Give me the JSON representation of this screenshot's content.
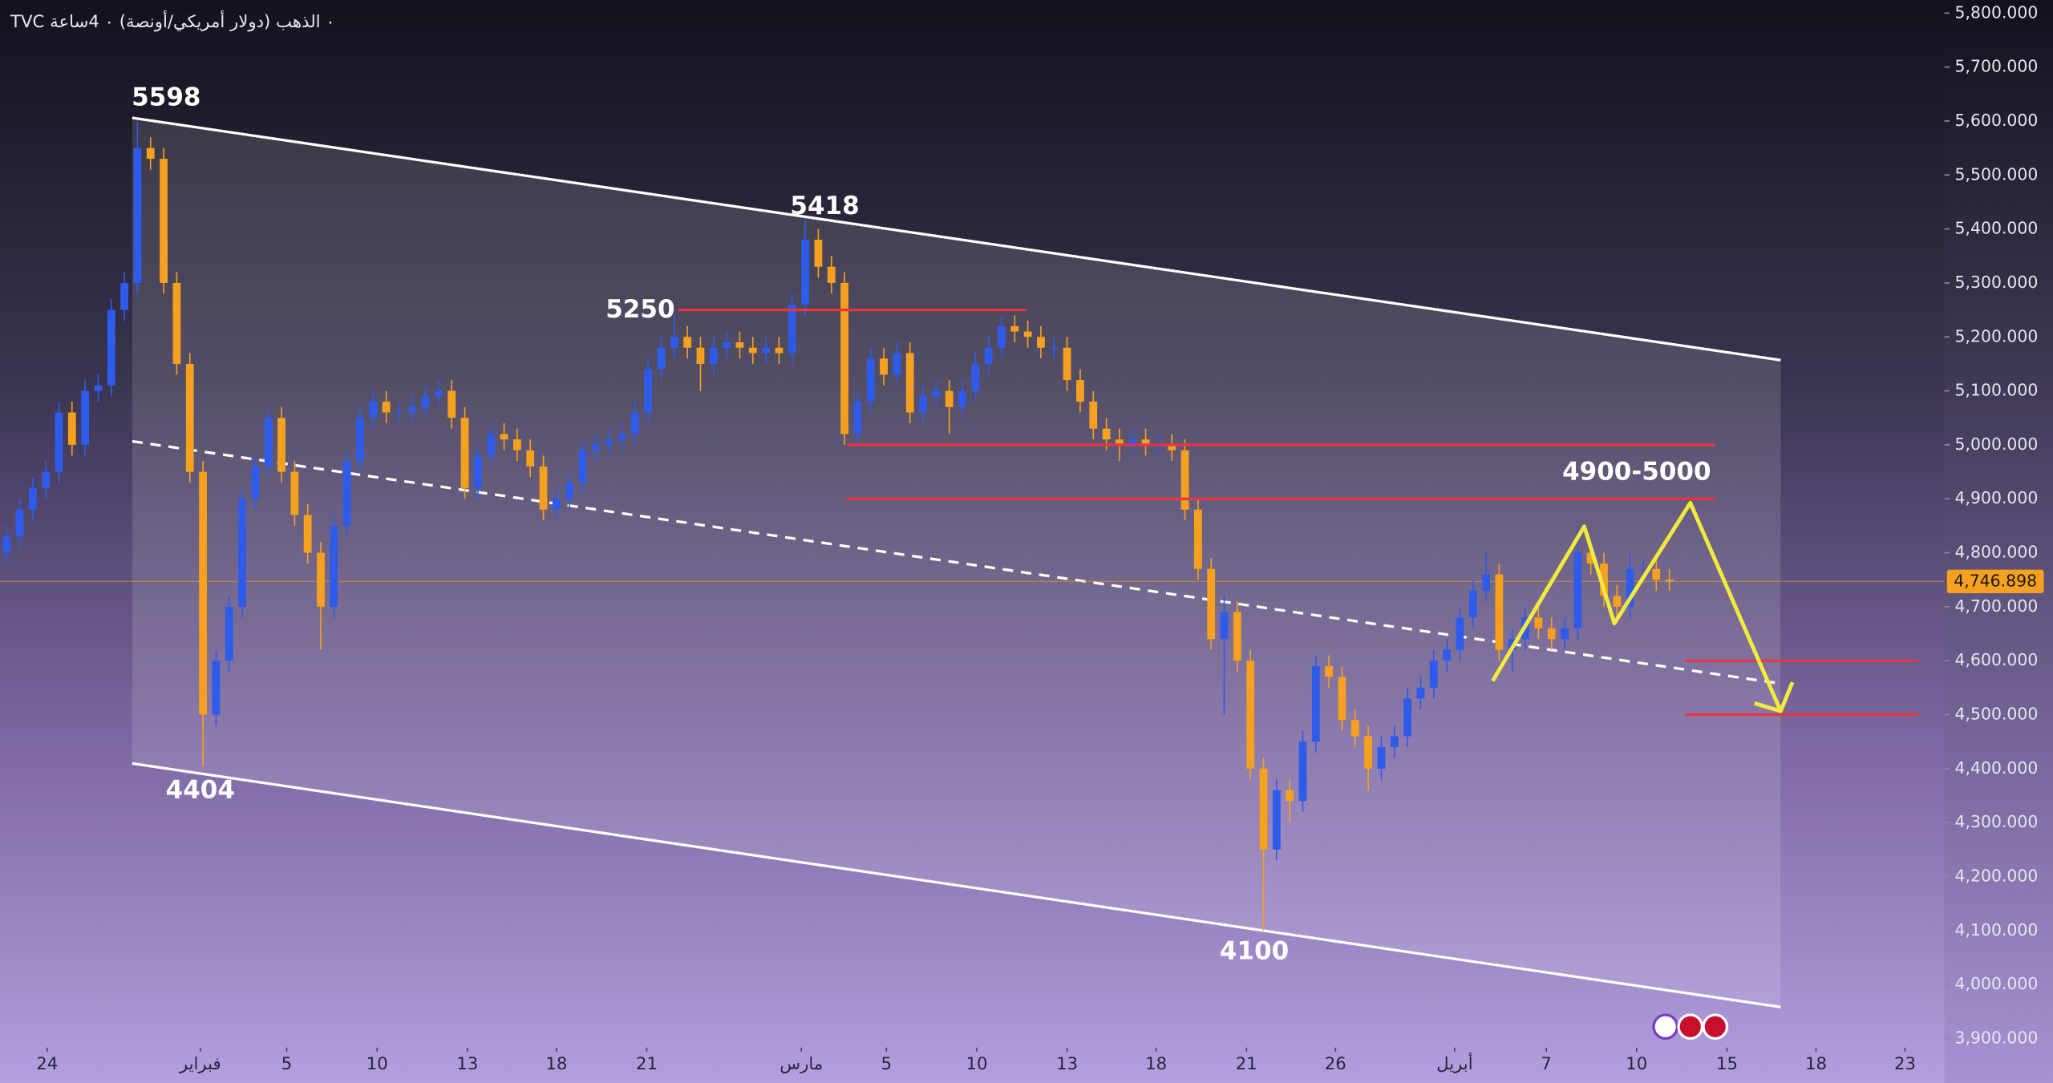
{
  "chart_data": {
    "type": "candlestick",
    "title": "TVC ٠ الذهب (دولار أمريكي/أونصة) ٠ 4ساعة",
    "up_color": "#2f5bea",
    "down_color": "#f5a01e",
    "ylim": [
      3900,
      5800
    ],
    "yticks": [
      {
        "value": 3900,
        "label": "3,900.000"
      },
      {
        "value": 4000,
        "label": "4,000.000"
      },
      {
        "value": 4100,
        "label": "4,100.000"
      },
      {
        "value": 4200,
        "label": "4,200.000"
      },
      {
        "value": 4300,
        "label": "4,300.000"
      },
      {
        "value": 4400,
        "label": "4,400.000"
      },
      {
        "value": 4500,
        "label": "4,500.000"
      },
      {
        "value": 4600,
        "label": "4,600.000"
      },
      {
        "value": 4700,
        "label": "4,700.000"
      },
      {
        "value": 4800,
        "label": "4,800.000"
      },
      {
        "value": 4900,
        "label": "4,900.000"
      },
      {
        "value": 5000,
        "label": "5,000.000"
      },
      {
        "value": 5100,
        "label": "5,100.000"
      },
      {
        "value": 5200,
        "label": "5,200.000"
      },
      {
        "value": 5300,
        "label": "5,300.000"
      },
      {
        "value": 5400,
        "label": "5,400.000"
      },
      {
        "value": 5500,
        "label": "5,500.000"
      },
      {
        "value": 5600,
        "label": "5,600.000"
      },
      {
        "value": 5700,
        "label": "5,700.000"
      },
      {
        "value": 5800,
        "label": "5,800.000"
      }
    ],
    "xlim": [
      -0.5,
      148
    ],
    "xticks": [
      {
        "value": 3.1,
        "label": "24"
      },
      {
        "value": 14.8,
        "label": "فبراير"
      },
      {
        "value": 21.4,
        "label": "5"
      },
      {
        "value": 28.3,
        "label": "10"
      },
      {
        "value": 35.2,
        "label": "13"
      },
      {
        "value": 42,
        "label": "18"
      },
      {
        "value": 48.9,
        "label": "21"
      },
      {
        "value": 60.7,
        "label": "مارس"
      },
      {
        "value": 67.2,
        "label": "5"
      },
      {
        "value": 74.1,
        "label": "10"
      },
      {
        "value": 81,
        "label": "13"
      },
      {
        "value": 87.8,
        "label": "18"
      },
      {
        "value": 94.7,
        "label": "21"
      },
      {
        "value": 101.5,
        "label": "26"
      },
      {
        "value": 110.6,
        "label": "أبريل"
      },
      {
        "value": 117.6,
        "label": "7"
      },
      {
        "value": 124.5,
        "label": "10"
      },
      {
        "value": 131.4,
        "label": "15"
      },
      {
        "value": 138.2,
        "label": "18"
      },
      {
        "value": 145,
        "label": "23"
      }
    ],
    "last_price": {
      "value": 4746.898,
      "label": "4,746.898"
    },
    "open": [
      4800,
      4830,
      4880,
      4920,
      4950,
      5060,
      5000,
      5100,
      5110,
      5250,
      5300,
      5550,
      5530,
      5300,
      5150,
      4950,
      4500,
      4600,
      4700,
      4900,
      4960,
      5050,
      4950,
      4870,
      4800,
      4700,
      4850,
      4970,
      5050,
      5080,
      5060,
      5060,
      5070,
      5090,
      5100,
      5050,
      4920,
      4980,
      5020,
      5010,
      4990,
      4960,
      4880,
      4900,
      4930,
      4990,
      5000,
      5010,
      5020,
      5060,
      5140,
      5180,
      5200,
      5180,
      5150,
      5180,
      5190,
      5180,
      5170,
      5180,
      5170,
      5260,
      5380,
      5330,
      5300,
      5020,
      5080,
      5160,
      5130,
      5170,
      5060,
      5090,
      5100,
      5070,
      5100,
      5150,
      5180,
      5220,
      5210,
      5200,
      5180,
      5180,
      5120,
      5080,
      5030,
      5010,
      5000,
      5010,
      5000,
      5000,
      4990,
      4880,
      4770,
      4640,
      4690,
      4600,
      4400,
      4250,
      4360,
      4340,
      4450,
      4590,
      4570,
      4490,
      4460,
      4400,
      4440,
      4460,
      4530,
      4550,
      4600,
      4620,
      4680,
      4730,
      4760,
      4620,
      4640,
      4680,
      4660,
      4640,
      4660,
      4800,
      4780,
      4720,
      4700,
      4770,
      4770,
      4750
    ],
    "high": [
      4850,
      4900,
      4940,
      4970,
      5080,
      5080,
      5120,
      5130,
      5270,
      5320,
      5598,
      5570,
      5550,
      5320,
      5170,
      4970,
      4620,
      4720,
      4920,
      4980,
      5070,
      5070,
      4970,
      4890,
      4820,
      4870,
      4990,
      5070,
      5100,
      5100,
      5080,
      5090,
      5110,
      5120,
      5120,
      5070,
      5000,
      5040,
      5040,
      5030,
      5010,
      4980,
      4920,
      4950,
      5010,
      5020,
      5030,
      5040,
      5080,
      5160,
      5200,
      5240,
      5220,
      5200,
      5200,
      5210,
      5210,
      5200,
      5200,
      5200,
      5280,
      5418,
      5400,
      5350,
      5320,
      5100,
      5180,
      5180,
      5190,
      5190,
      5110,
      5120,
      5120,
      5120,
      5170,
      5200,
      5240,
      5240,
      5230,
      5220,
      5200,
      5200,
      5140,
      5100,
      5050,
      5030,
      5030,
      5030,
      5020,
      5020,
      5010,
      4900,
      4790,
      4720,
      4710,
      4620,
      4420,
      4380,
      4380,
      4470,
      4610,
      4610,
      4590,
      4510,
      4480,
      4460,
      4480,
      4550,
      4570,
      4620,
      4640,
      4700,
      4750,
      4800,
      4780,
      4660,
      4700,
      4700,
      4680,
      4680,
      4850,
      4820,
      4800,
      4740,
      4800,
      4790,
      4790,
      4770
    ],
    "low": [
      4780,
      4810,
      4860,
      4900,
      4930,
      4980,
      4980,
      5080,
      5090,
      5230,
      5280,
      5510,
      5280,
      5130,
      4930,
      4404,
      4480,
      4580,
      4680,
      4880,
      4940,
      4930,
      4850,
      4780,
      4620,
      4680,
      4830,
      4950,
      5030,
      5040,
      5040,
      5040,
      5050,
      5070,
      5030,
      4900,
      4900,
      4960,
      4990,
      4970,
      4940,
      4860,
      4860,
      4880,
      4910,
      4970,
      4980,
      4990,
      5000,
      5040,
      5120,
      5160,
      5160,
      5100,
      5130,
      5160,
      5160,
      5150,
      5150,
      5150,
      5150,
      5240,
      5310,
      5280,
      5000,
      5000,
      5060,
      5110,
      5110,
      5040,
      5040,
      5070,
      5020,
      5050,
      5080,
      5130,
      5160,
      5190,
      5180,
      5160,
      5160,
      5100,
      5060,
      5010,
      4990,
      4970,
      4980,
      4980,
      4980,
      4970,
      4860,
      4750,
      4620,
      4500,
      4580,
      4380,
      4100,
      4230,
      4300,
      4320,
      4430,
      4550,
      4470,
      4440,
      4360,
      4380,
      4420,
      4440,
      4510,
      4530,
      4580,
      4600,
      4660,
      4710,
      4600,
      4580,
      4620,
      4640,
      4620,
      4620,
      4640,
      4760,
      4700,
      4680,
      4680,
      4750,
      4730,
      4730
    ],
    "close": [
      4830,
      4880,
      4920,
      4950,
      5060,
      5000,
      5100,
      5110,
      5250,
      5300,
      5550,
      5530,
      5300,
      5150,
      4950,
      4500,
      4600,
      4700,
      4900,
      4960,
      5050,
      4950,
      4870,
      4800,
      4700,
      4850,
      4970,
      5050,
      5080,
      5060,
      5060,
      5070,
      5090,
      5100,
      5050,
      4920,
      4980,
      5020,
      5010,
      4990,
      4960,
      4880,
      4900,
      4930,
      4990,
      5000,
      5010,
      5020,
      5060,
      5140,
      5180,
      5200,
      5180,
      5150,
      5180,
      5190,
      5180,
      5170,
      5180,
      5170,
      5260,
      5380,
      5330,
      5300,
      5020,
      5080,
      5160,
      5130,
      5170,
      5060,
      5090,
      5100,
      5070,
      5100,
      5150,
      5180,
      5220,
      5210,
      5200,
      5180,
      5180,
      5120,
      5080,
      5030,
      5010,
      5000,
      5010,
      5000,
      5000,
      4990,
      4880,
      4770,
      4640,
      4690,
      4600,
      4400,
      4250,
      4360,
      4340,
      4450,
      4590,
      4570,
      4490,
      4460,
      4400,
      4440,
      4460,
      4530,
      4550,
      4600,
      4620,
      4680,
      4730,
      4760,
      4620,
      4640,
      4680,
      4660,
      4640,
      4660,
      4800,
      4780,
      4720,
      4700,
      4770,
      4770,
      4750,
      4747
    ],
    "levels": [
      5250,
      5000,
      4900,
      4600,
      4500
    ],
    "level_color": "#e8353f",
    "annotations": [
      "5598",
      "5418",
      "5250",
      "4404",
      "4100",
      "4900-5000"
    ]
  }
}
